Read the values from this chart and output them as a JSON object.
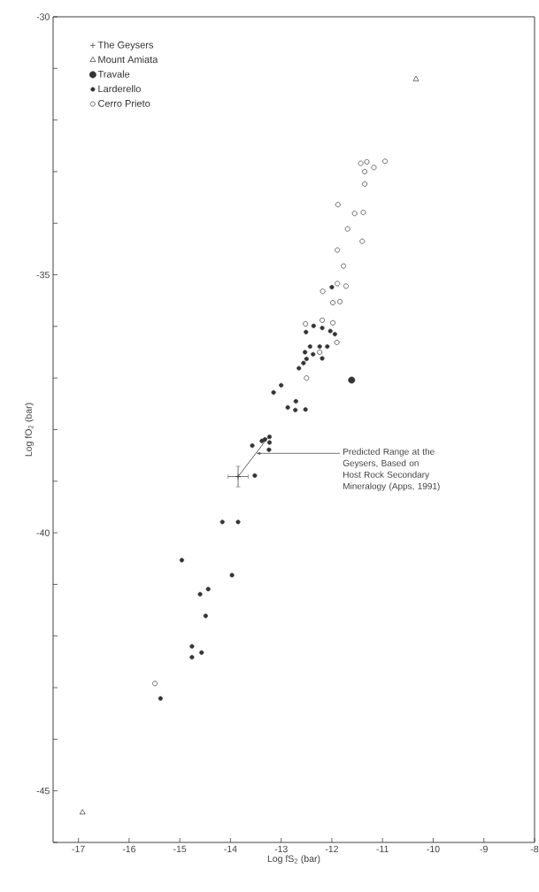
{
  "chart_data": {
    "type": "scatter",
    "xlabel": "Log fS$_{2}$ (bar)",
    "ylabel": "Log fO$_{2}$ (bar)",
    "xlim": [
      -17.5,
      -8
    ],
    "ylim": [
      -46,
      -30
    ],
    "xticks": [
      -17,
      -16,
      -15,
      -14,
      -13,
      -12,
      -11,
      -10,
      -9,
      -8
    ],
    "yticks": [
      {
        "value": -46,
        "label": null
      },
      -45,
      {
        "value": -44,
        "label": null
      },
      {
        "value": -43,
        "label": null
      },
      {
        "value": -42,
        "label": null
      },
      {
        "value": -41,
        "label": null
      },
      -40,
      {
        "value": -39,
        "label": null
      },
      {
        "value": -38,
        "label": null
      },
      {
        "value": -37,
        "label": null
      },
      {
        "value": -36,
        "label": null
      },
      -35,
      {
        "value": -34,
        "label": null
      },
      {
        "value": -33,
        "label": null
      },
      {
        "value": -32,
        "label": null
      },
      {
        "value": -31,
        "label": null
      },
      -30
    ],
    "legend": "top left",
    "grid": false,
    "series": [
      {
        "name": "The Geysers",
        "color": "#333333",
        "marker": "cross",
        "x": [
          -13.85
        ],
        "values": [
          -38.91
        ],
        "errors": [
          0.2
        ],
        "xerrors": [
          0.2
        ]
      },
      {
        "name": "Mount Amiata",
        "color": "#333333",
        "marker": "triangle",
        "x": [
          -10.34,
          -16.92
        ],
        "values": [
          -31.21,
          -45.42
        ]
      },
      {
        "name": "Travale",
        "color": "#333333",
        "marker": "circle",
        "x": [
          -11.61
        ],
        "values": [
          -37.04
        ]
      },
      {
        "name": "Larderello",
        "color": "#333333",
        "marker": "circle",
        "x": [
          -12.0,
          -12.36,
          -12.19,
          -12.03,
          -11.94,
          -12.51,
          -12.43,
          -12.24,
          -12.09,
          -12.53,
          -12.37,
          -12.19,
          -12.5,
          -12.56,
          -12.65,
          -13.0,
          -13.15,
          -12.71,
          -12.87,
          -12.72,
          -12.52,
          -13.23,
          -13.32,
          -13.38,
          -13.23,
          -13.24,
          -13.57,
          -13.52,
          -14.16,
          -13.85,
          -14.96,
          -13.97,
          -14.6,
          -14.44,
          -14.49,
          -14.76,
          -14.76,
          -14.57,
          -15.38
        ],
        "values": [
          -35.24,
          -35.99,
          -36.03,
          -36.09,
          -36.15,
          -36.11,
          -36.39,
          -36.39,
          -36.39,
          -36.5,
          -36.54,
          -36.62,
          -36.63,
          -36.71,
          -36.81,
          -37.14,
          -37.28,
          -37.45,
          -37.57,
          -37.62,
          -37.61,
          -38.14,
          -38.19,
          -38.22,
          -38.25,
          -38.39,
          -38.31,
          -38.89,
          -39.79,
          -39.79,
          -40.53,
          -40.82,
          -41.19,
          -41.09,
          -41.61,
          -42.2,
          -42.41,
          -42.32,
          -43.21
        ]
      },
      {
        "name": "Cerro Prieto",
        "color": "#333333",
        "marker": "circle",
        "x": [
          -11.43,
          -11.31,
          -11.35,
          -11.17,
          -10.95,
          -11.35,
          -11.88,
          -11.55,
          -11.38,
          -11.69,
          -11.4,
          -11.89,
          -11.77,
          -11.89,
          -12.18,
          -11.72,
          -11.98,
          -11.84,
          -12.52,
          -12.19,
          -11.98,
          -11.9,
          -12.5,
          -12.24,
          -15.49
        ],
        "values": [
          -32.84,
          -32.81,
          -33.0,
          -32.92,
          -32.8,
          -33.24,
          -33.64,
          -33.81,
          -33.79,
          -34.11,
          -34.35,
          -34.52,
          -34.83,
          -35.17,
          -35.32,
          -35.22,
          -35.54,
          -35.52,
          -35.95,
          -35.88,
          -35.93,
          -36.31,
          -37.0,
          -36.5,
          -42.92
        ]
      },
      {
        "type": "line",
        "color": "#333333",
        "x": [
          -13.85,
          -13.25
        ],
        "values": [
          -38.91,
          -38.14
        ]
      }
    ],
    "annotations": [
      {
        "text": "Predicted Range at the Geysers, Based on Host Rock Secondary Mineralogy (Apps, 1991)",
        "x": -13.5,
        "y": -38.46
      }
    ]
  }
}
